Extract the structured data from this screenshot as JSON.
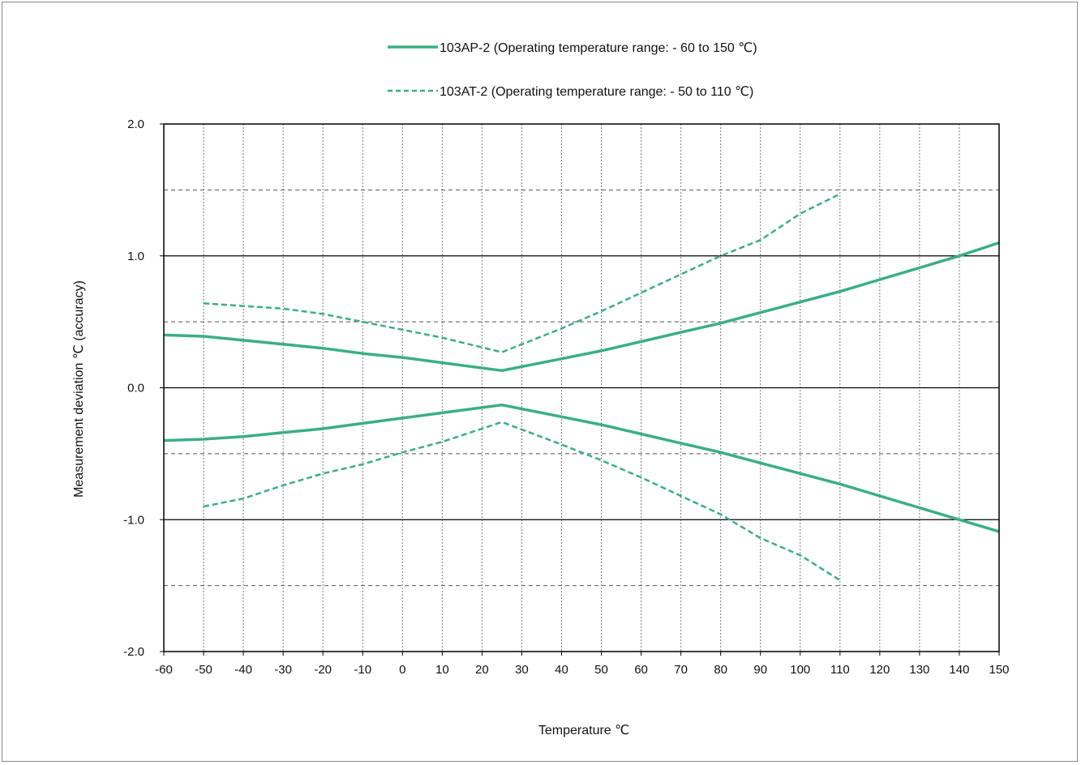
{
  "chart_data": {
    "type": "line",
    "title": "",
    "xlabel": "Temperature ℃",
    "ylabel": "Measurement deviation  ℃ (accuracy)",
    "xlim": [
      -60,
      150
    ],
    "ylim": [
      -2.0,
      2.0
    ],
    "x_tick_values": [
      -60,
      -50,
      -40,
      -30,
      -20,
      -10,
      0,
      10,
      20,
      30,
      40,
      50,
      60,
      70,
      80,
      90,
      100,
      110,
      120,
      130,
      140,
      150
    ],
    "x_tick_labels": [
      "-60",
      "-50",
      "-40",
      "-30",
      "-20",
      "-10",
      "0",
      "10",
      "20",
      "30",
      "40",
      "50",
      "60",
      "70",
      "80",
      "90",
      "100",
      "110",
      "120",
      "130",
      "140",
      "150"
    ],
    "y_tick_values": [
      2.0,
      1.0,
      0.0,
      -1.0,
      -2.0
    ],
    "y_tick_labels": [
      "2.0",
      "1.0",
      "0.0",
      "-1.0",
      "-2.0"
    ],
    "y_minor_gridlines": [
      1.5,
      0.5,
      -0.5,
      -1.5
    ],
    "grid": true,
    "legend_position": "top-center",
    "colors": {
      "series": "#3aaf84",
      "grid_major": "#000000",
      "grid_minor": "#555555",
      "frame": "#8a8a8a"
    },
    "legend": [
      {
        "label": "103AP-2 (Operating temperature range: - 60 to 150 ℃)",
        "style": "solid"
      },
      {
        "label": "103AT-2 (Operating temperature range: - 50 to 110 ℃)",
        "style": "dashed"
      }
    ],
    "series": [
      {
        "group": 0,
        "style": "solid",
        "x": [
          -60,
          -50,
          -40,
          -30,
          -20,
          -10,
          0,
          10,
          25,
          40,
          50,
          60,
          70,
          80,
          85,
          90,
          100,
          110,
          120,
          130,
          140,
          150
        ],
        "y": [
          0.4,
          0.39,
          0.36,
          0.33,
          0.3,
          0.26,
          0.23,
          0.19,
          0.13,
          0.22,
          0.28,
          0.35,
          0.42,
          0.49,
          0.53,
          0.57,
          0.65,
          0.73,
          0.82,
          0.91,
          1.0,
          1.1
        ]
      },
      {
        "group": 0,
        "style": "solid",
        "x": [
          -60,
          -50,
          -40,
          -30,
          -20,
          -10,
          0,
          10,
          25,
          40,
          50,
          60,
          70,
          80,
          85,
          90,
          100,
          110,
          120,
          130,
          140,
          150
        ],
        "y": [
          -0.4,
          -0.39,
          -0.37,
          -0.34,
          -0.31,
          -0.27,
          -0.23,
          -0.19,
          -0.13,
          -0.22,
          -0.28,
          -0.35,
          -0.42,
          -0.49,
          -0.53,
          -0.57,
          -0.65,
          -0.73,
          -0.82,
          -0.91,
          -1.0,
          -1.09
        ]
      },
      {
        "group": 1,
        "style": "dashed",
        "x": [
          -50,
          -40,
          -30,
          -20,
          -10,
          0,
          10,
          25,
          40,
          50,
          60,
          70,
          80,
          90,
          100,
          110
        ],
        "y": [
          0.64,
          0.62,
          0.6,
          0.56,
          0.5,
          0.44,
          0.38,
          0.27,
          0.45,
          0.58,
          0.72,
          0.86,
          1.0,
          1.12,
          1.32,
          1.47
        ]
      },
      {
        "group": 1,
        "style": "dashed",
        "x": [
          -50,
          -40,
          -30,
          -20,
          -10,
          0,
          10,
          25,
          40,
          50,
          60,
          70,
          80,
          90,
          100,
          110
        ],
        "y": [
          -0.9,
          -0.84,
          -0.74,
          -0.65,
          -0.58,
          -0.49,
          -0.41,
          -0.26,
          -0.43,
          -0.55,
          -0.68,
          -0.82,
          -0.96,
          -1.14,
          -1.27,
          -1.46
        ]
      }
    ]
  }
}
